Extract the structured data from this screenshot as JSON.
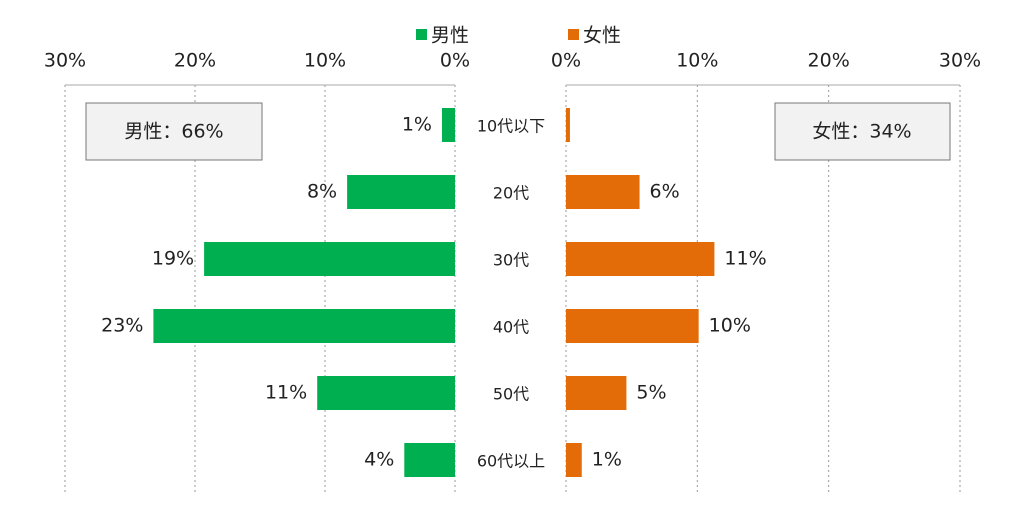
{
  "chart_data": {
    "type": "bar",
    "orientation": "horizontal-butterfly",
    "categories": [
      "10代以下",
      "20代",
      "30代",
      "40代",
      "50代",
      "60代以上"
    ],
    "series": [
      {
        "name": "男性",
        "color": "#00b050",
        "values": [
          1.0,
          8.3,
          19.3,
          23.2,
          10.6,
          3.9
        ],
        "value_labels": [
          "1%",
          "8%",
          "19%",
          "23%",
          "11%",
          "4%"
        ]
      },
      {
        "name": "女性",
        "color": "#e36c09",
        "values": [
          0.3,
          5.6,
          11.3,
          10.1,
          4.6,
          1.2
        ],
        "value_labels": [
          null,
          "6%",
          "11%",
          "10%",
          "5%",
          "1%"
        ]
      }
    ],
    "xlim": [
      0,
      30
    ],
    "xticks": [
      {
        "value": 0,
        "label": "0%"
      },
      {
        "value": 10,
        "label": "10%"
      },
      {
        "value": 20,
        "label": "20%"
      },
      {
        "value": 30,
        "label": "30%"
      }
    ],
    "grid": true,
    "annotations": [
      "男性：66%",
      "女性：34%"
    ]
  }
}
